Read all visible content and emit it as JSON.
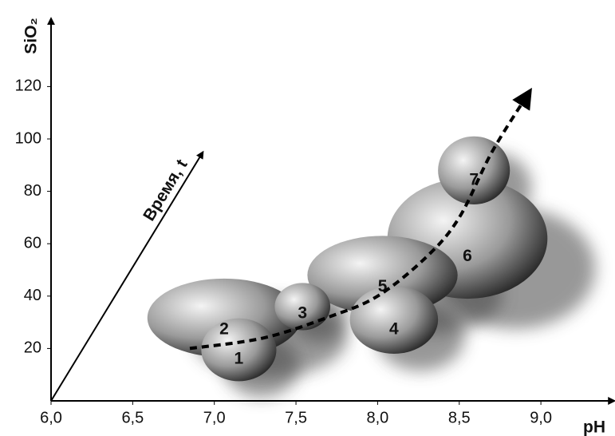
{
  "chart_data": {
    "type": "ellipse",
    "x_label": "pH",
    "y_label": "SiO₂",
    "xlim": [
      6.0,
      9.45
    ],
    "ylim": [
      0,
      146
    ],
    "xticks": [
      {
        "value": 6.0,
        "label": "6,0"
      },
      {
        "value": 6.5,
        "label": "6,5"
      },
      {
        "value": 7.0,
        "label": "7,0"
      },
      {
        "value": 7.5,
        "label": "7,5"
      },
      {
        "value": 8.0,
        "label": "8,0"
      },
      {
        "value": 8.5,
        "label": "8,5"
      },
      {
        "value": 9.0,
        "label": "9,0"
      }
    ],
    "yticks": [
      20,
      40,
      60,
      80,
      100,
      120
    ],
    "regions": [
      {
        "label": "1",
        "x": 7.15,
        "y": 19.5,
        "rx": 0.23,
        "ry": 12
      },
      {
        "label": "2",
        "x": 7.06,
        "y": 31.7,
        "rx": 0.47,
        "ry": 15
      },
      {
        "label": "3",
        "x": 7.54,
        "y": 36,
        "rx": 0.17,
        "ry": 9
      },
      {
        "label": "4",
        "x": 8.1,
        "y": 31,
        "rx": 0.27,
        "ry": 13
      },
      {
        "label": "5",
        "x": 8.03,
        "y": 48,
        "rx": 0.46,
        "ry": 15
      },
      {
        "label": "6",
        "x": 8.55,
        "y": 62,
        "rx": 0.49,
        "ry": 23
      },
      {
        "label": "7",
        "x": 8.59,
        "y": 88,
        "rx": 0.22,
        "ry": 13
      }
    ],
    "trend": {
      "x": [
        6.85,
        7.3,
        7.7,
        8.0,
        8.3,
        8.5,
        8.7,
        8.93
      ],
      "values": [
        20,
        24,
        32,
        40,
        55,
        70,
        95,
        118
      ]
    },
    "time_arrow": {
      "label": "Время, t",
      "x": [
        6.0,
        6.93
      ],
      "values": [
        0,
        95
      ]
    }
  }
}
